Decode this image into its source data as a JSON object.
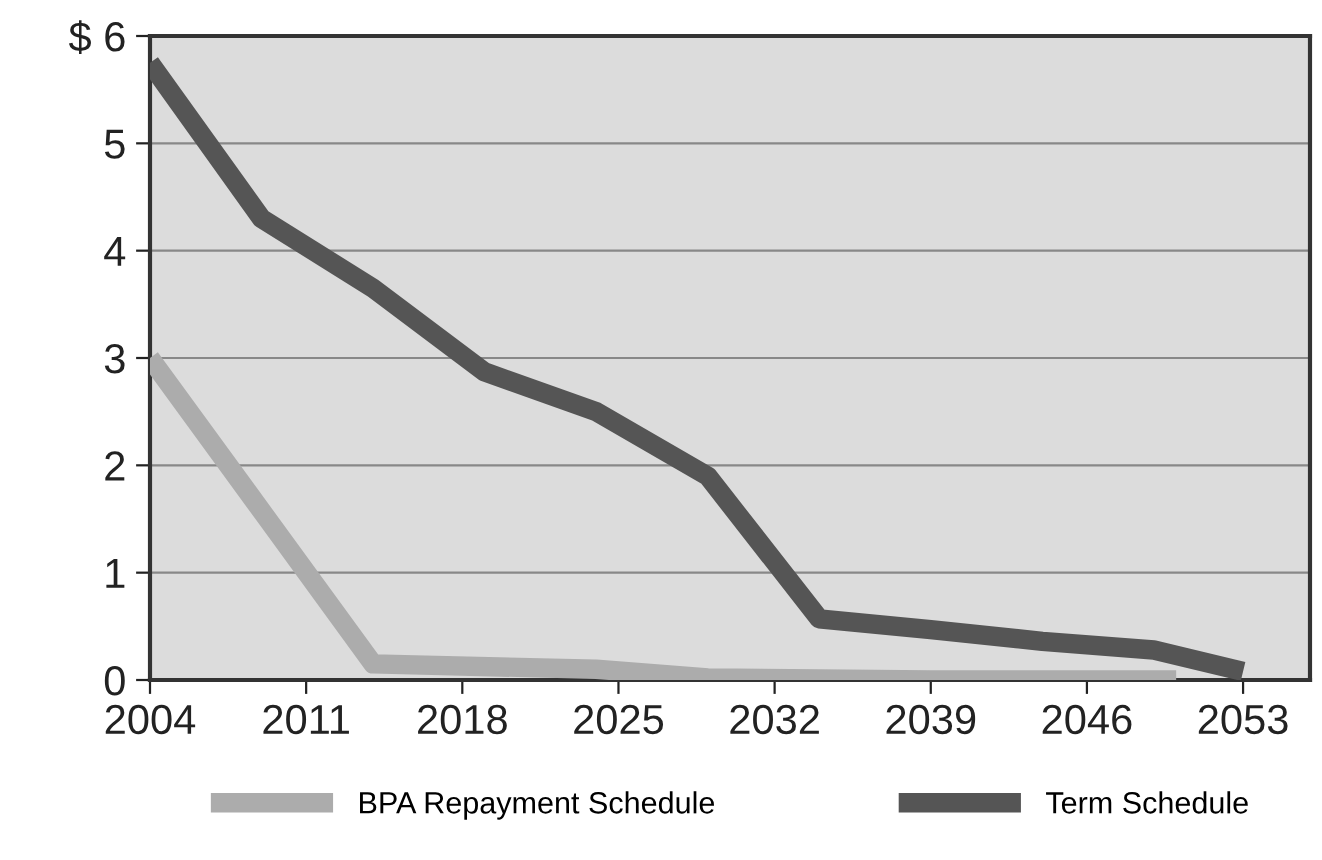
{
  "chart_data": {
    "type": "line",
    "series": [
      {
        "name": "BPA Repayment Schedule",
        "color": "#acacac",
        "x": [
          2004,
          2014,
          2024,
          2029,
          2034,
          2039,
          2044,
          2050
        ],
        "values": [
          3.0,
          0.15,
          0.1,
          0.02,
          0.01,
          0.0,
          0.0,
          0.0
        ]
      },
      {
        "name": "Term Schedule",
        "color": "#555555",
        "x": [
          2004,
          2009,
          2014,
          2019,
          2024,
          2029,
          2034,
          2039,
          2044,
          2049,
          2053
        ],
        "values": [
          5.75,
          4.3,
          3.65,
          2.87,
          2.5,
          1.9,
          0.57,
          0.47,
          0.36,
          0.28,
          0.08
        ]
      }
    ],
    "xlim": [
      2004,
      2056
    ],
    "xticks": [
      2004,
      2011,
      2018,
      2025,
      2032,
      2039,
      2046,
      2053
    ],
    "ylim": [
      0,
      6
    ],
    "yticks": [
      0,
      1,
      2,
      3,
      4,
      5,
      {
        "value": 6,
        "label": "$ 6"
      }
    ],
    "grid": "y",
    "legend": "bottom",
    "marker": "none",
    "line_style": "solid"
  }
}
